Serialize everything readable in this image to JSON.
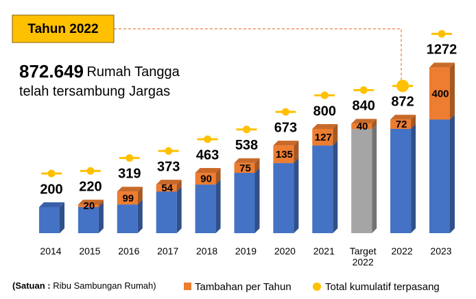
{
  "annotations": {
    "box": "Tahun 2022",
    "headline_number": "872.649",
    "headline_text": "Rumah Tangga",
    "headline_line2": "telah tersambung Jargas",
    "unit_label": "(Satuan :",
    "unit_text": "Ribu Sambungan Rumah)"
  },
  "chart_data": {
    "type": "stacked_bar",
    "categories": [
      "2014",
      "2015",
      "2016",
      "2017",
      "2018",
      "2019",
      "2020",
      "2021",
      "Target 2022",
      "2022",
      "2023"
    ],
    "series": [
      {
        "color": "#4472c4",
        "colors": [
          "#4472c4",
          "#4472c4",
          "#4472c4",
          "#4472c4",
          "#4472c4",
          "#4472c4",
          "#4472c4",
          "#4472c4",
          "#a5a5a5",
          "#4472c4",
          "#4472c4"
        ],
        "values": [
          200,
          200,
          220,
          319,
          373,
          463,
          538,
          673,
          800,
          800,
          872
        ]
      },
      {
        "name": "Tambahan per Tahun",
        "color": "#ed7d31",
        "values": [
          null,
          20,
          99,
          54,
          90,
          75,
          135,
          127,
          40,
          72,
          400
        ]
      }
    ],
    "totals": {
      "name": "Total kumulatif terpasang",
      "color": "#ffc000",
      "values": [
        200,
        220,
        319,
        373,
        463,
        538,
        673,
        800,
        840,
        872,
        1272
      ]
    },
    "highlight": "2022"
  }
}
